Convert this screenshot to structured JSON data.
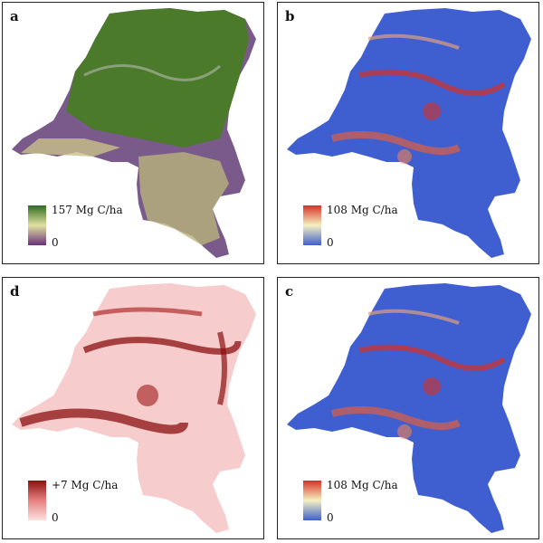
{
  "panels": [
    {
      "letter": "a",
      "legend_max": "157 Mg C/ha",
      "legend_min": "0",
      "colors": [
        "#2f6b1e",
        "#e0e0a0",
        "#6a2f7a"
      ]
    },
    {
      "letter": "b",
      "legend_max": "108 Mg C/ha",
      "legend_min": "0",
      "colors": [
        "#d73027",
        "#f5f0c0",
        "#3f5fd0"
      ]
    },
    {
      "letter": "d",
      "legend_max": "+7 Mg C/ha",
      "legend_min": "0",
      "colors": [
        "#8b1010",
        "#e68080",
        "#fde0e0"
      ]
    },
    {
      "letter": "c",
      "legend_max": "108 Mg C/ha",
      "legend_min": "0",
      "colors": [
        "#d73027",
        "#f5f0c0",
        "#3f5fd0"
      ]
    }
  ]
}
